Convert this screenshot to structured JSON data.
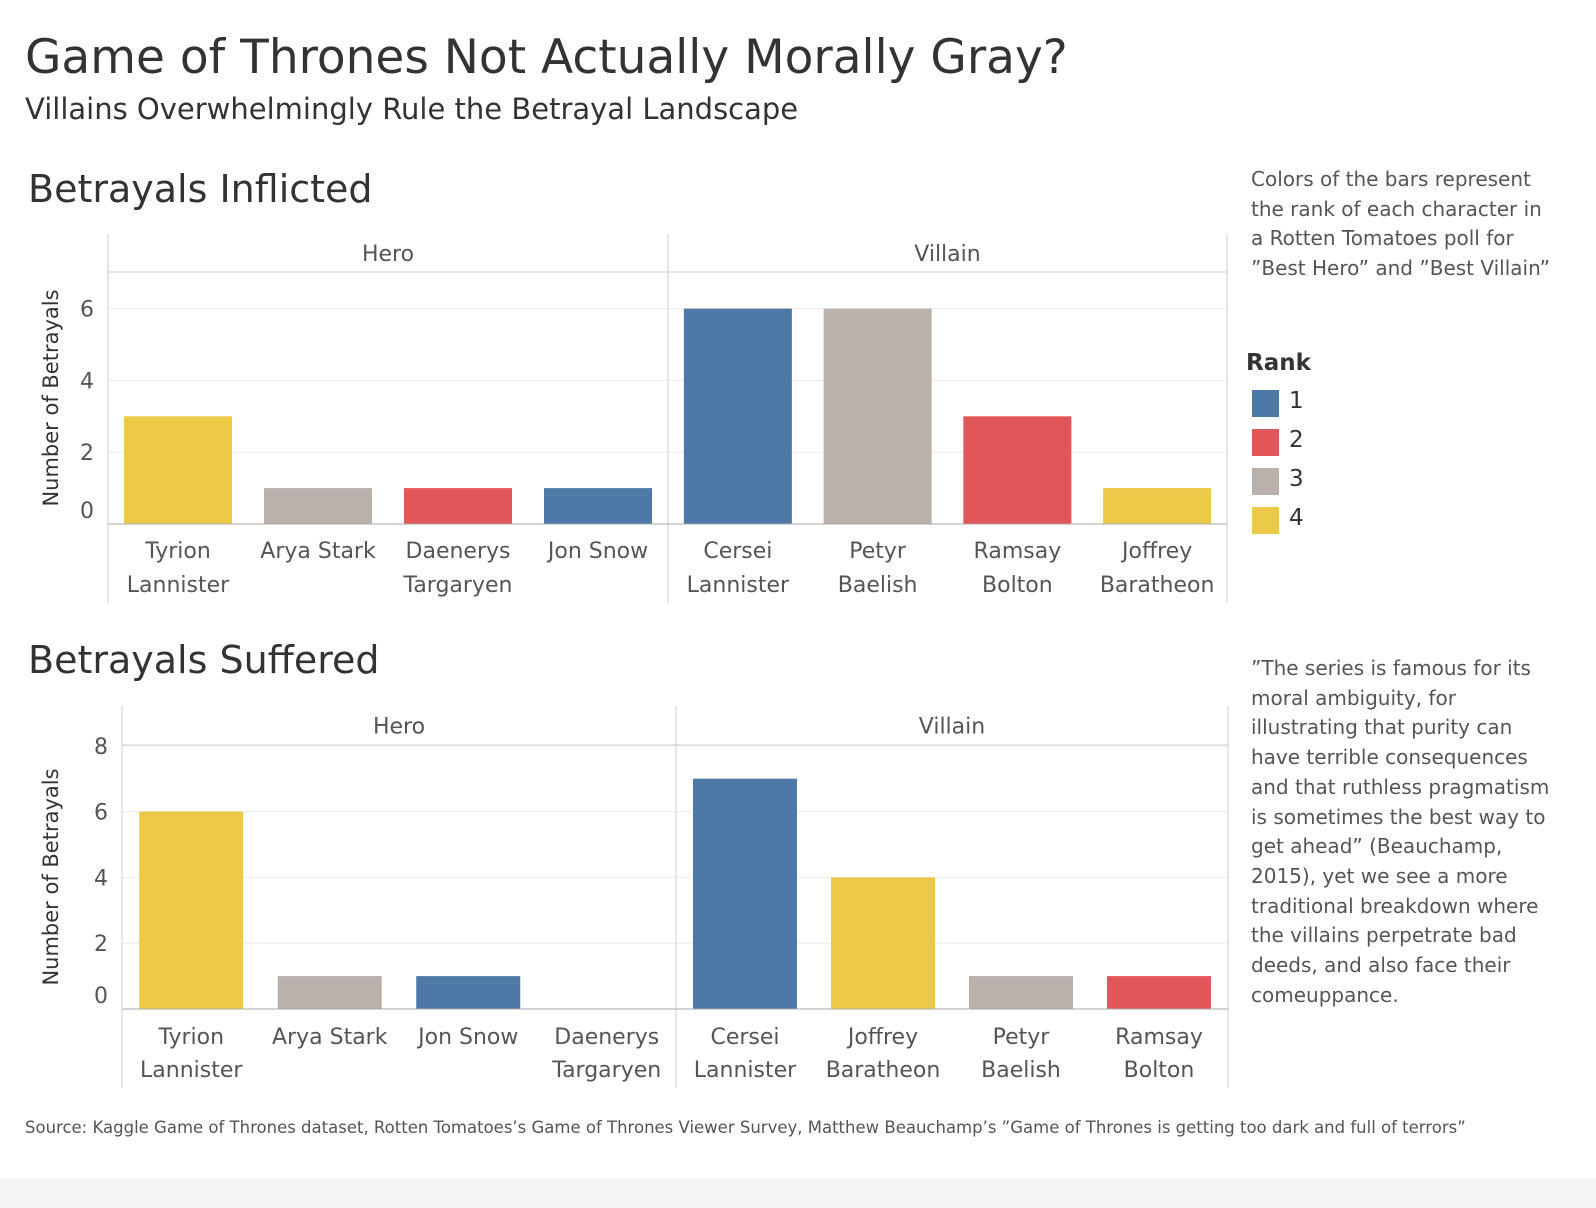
{
  "header": {
    "title": "Game of Thrones Not Actually Morally Gray?",
    "subtitle": "Villains Overwhelmingly Rule the Betrayal Landscape"
  },
  "notes": {
    "colors_note": "Colors of the bars represent the rank of each character in a Rotten Tomatoes poll for ”Best Hero” and ”Best Villain”",
    "quote_note": "”The series is famous for its moral ambiguity, for illustrating that purity can have terrible consequences and that ruthless pragmatism is sometimes the best way to get ahead” (Beauchamp, 2015), yet we see a more traditional breakdown where the villains perpetrate bad deeds, and also face their comeuppance."
  },
  "legend": {
    "title": "Rank",
    "items": [
      {
        "label": "1",
        "color": "#4e79a7"
      },
      {
        "label": "2",
        "color": "#e15759"
      },
      {
        "label": "3",
        "color": "#bab0ac"
      },
      {
        "label": "4",
        "color": "#edc948"
      }
    ]
  },
  "source": "Source: Kaggle Game of Thrones dataset, Rotten Tomatoes’s Game of Thrones Viewer Survey, Matthew Beauchamp’s ”Game of Thrones is getting too dark and full of terrors”",
  "chart_data": [
    {
      "type": "bar",
      "title": "Betrayals Inflicted",
      "ylabel": "Number of Betrayals",
      "ylim": [
        0,
        7
      ],
      "yticks": [
        0,
        2,
        4,
        6
      ],
      "grid": true,
      "panels": [
        {
          "name": "Hero",
          "categories": [
            [
              "Tyrion",
              "Lannister"
            ],
            [
              "Arya Stark"
            ],
            [
              "Daenerys",
              "Targaryen"
            ],
            [
              "Jon Snow"
            ]
          ],
          "values": [
            3,
            1,
            1,
            1
          ],
          "ranks": [
            4,
            3,
            2,
            1
          ]
        },
        {
          "name": "Villain",
          "categories": [
            [
              "Cersei",
              "Lannister"
            ],
            [
              "Petyr",
              "Baelish"
            ],
            [
              "Ramsay",
              "Bolton"
            ],
            [
              "Joffrey",
              "Baratheon"
            ]
          ],
          "values": [
            6,
            6,
            3,
            1
          ],
          "ranks": [
            1,
            3,
            2,
            4
          ]
        }
      ]
    },
    {
      "type": "bar",
      "title": "Betrayals Suffered",
      "ylabel": "Number of Betrayals",
      "ylim": [
        0,
        8
      ],
      "yticks": [
        0,
        2,
        4,
        6,
        8
      ],
      "grid": true,
      "panels": [
        {
          "name": "Hero",
          "categories": [
            [
              "Tyrion",
              "Lannister"
            ],
            [
              "Arya Stark"
            ],
            [
              "Jon Snow"
            ],
            [
              "Daenerys",
              "Targaryen"
            ]
          ],
          "values": [
            6,
            1,
            1,
            0
          ],
          "ranks": [
            4,
            3,
            1,
            2
          ]
        },
        {
          "name": "Villain",
          "categories": [
            [
              "Cersei",
              "Lannister"
            ],
            [
              "Joffrey",
              "Baratheon"
            ],
            [
              "Petyr",
              "Baelish"
            ],
            [
              "Ramsay",
              "Bolton"
            ]
          ],
          "values": [
            7,
            4,
            1,
            1
          ],
          "ranks": [
            1,
            4,
            3,
            2
          ]
        }
      ]
    }
  ]
}
